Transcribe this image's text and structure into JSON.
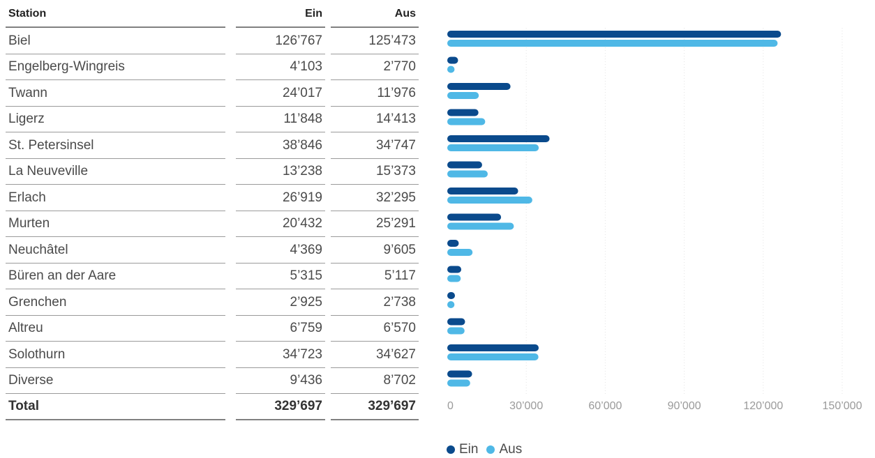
{
  "table": {
    "headers": {
      "station": "Station",
      "ein": "Ein",
      "aus": "Aus"
    },
    "rows": [
      {
        "station": "Biel",
        "ein": "126’767",
        "aus": "125’473"
      },
      {
        "station": "Engelberg-Wingreis",
        "ein": "4’103",
        "aus": "2’770"
      },
      {
        "station": "Twann",
        "ein": "24’017",
        "aus": "11’976"
      },
      {
        "station": "Ligerz",
        "ein": "11’848",
        "aus": "14’413"
      },
      {
        "station": "St. Petersinsel",
        "ein": "38’846",
        "aus": "34’747"
      },
      {
        "station": "La Neuveville",
        "ein": "13’238",
        "aus": "15’373"
      },
      {
        "station": "Erlach",
        "ein": "26’919",
        "aus": "32’295"
      },
      {
        "station": "Murten",
        "ein": "20’432",
        "aus": "25’291"
      },
      {
        "station": "Neuchâtel",
        "ein": "4’369",
        "aus": "9’605"
      },
      {
        "station": "Büren an der Aare",
        "ein": "5’315",
        "aus": "5’117"
      },
      {
        "station": "Grenchen",
        "ein": "2’925",
        "aus": "2’738"
      },
      {
        "station": "Altreu",
        "ein": "6’759",
        "aus": "6’570"
      },
      {
        "station": "Solothurn",
        "ein": "34’723",
        "aus": "34’627"
      },
      {
        "station": "Diverse",
        "ein": "9’436",
        "aus": "8’702"
      }
    ],
    "total": {
      "station": "Total",
      "ein": "329’697",
      "aus": "329’697"
    }
  },
  "chart_data": {
    "type": "bar",
    "orientation": "horizontal",
    "categories": [
      "Biel",
      "Engelberg-Wingreis",
      "Twann",
      "Ligerz",
      "St. Petersinsel",
      "La Neuveville",
      "Erlach",
      "Murten",
      "Neuchâtel",
      "Büren an der Aare",
      "Grenchen",
      "Altreu",
      "Solothurn",
      "Diverse"
    ],
    "series": [
      {
        "name": "Ein",
        "color": "#0a4a8c",
        "values": [
          126767,
          4103,
          24017,
          11848,
          38846,
          13238,
          26919,
          20432,
          4369,
          5315,
          2925,
          6759,
          34723,
          9436
        ]
      },
      {
        "name": "Aus",
        "color": "#4fb8e6",
        "values": [
          125473,
          2770,
          11976,
          14413,
          34747,
          15373,
          32295,
          25291,
          9605,
          5117,
          2738,
          6570,
          34627,
          8702
        ]
      }
    ],
    "xlim": [
      0,
      150000
    ],
    "x_ticks": [
      0,
      30000,
      60000,
      90000,
      120000,
      150000
    ],
    "x_tick_labels": [
      "0",
      "30’000",
      "60’000",
      "90’000",
      "120’000",
      "150’000"
    ],
    "grid": true,
    "legend": "bottom"
  }
}
